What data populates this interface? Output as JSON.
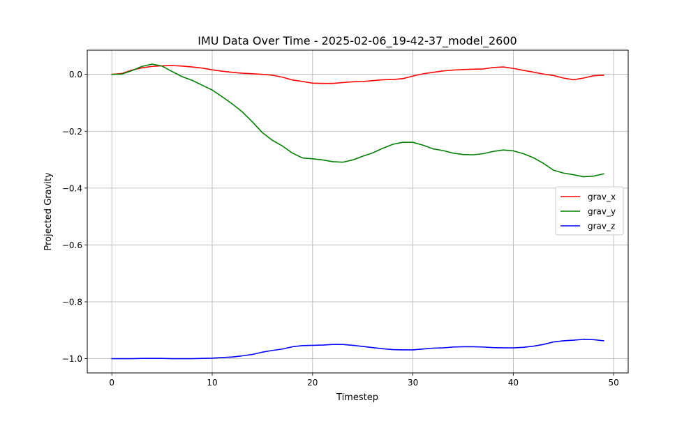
{
  "chart_data": {
    "type": "line",
    "title": "IMU Data Over Time - 2025-02-06_19-42-37_model_2600",
    "xlabel": "Timestep",
    "ylabel": "Projected Gravity",
    "xlim": [
      -2.45,
      51.45
    ],
    "ylim": [
      -1.05,
      0.085
    ],
    "xticks": [
      0,
      10,
      20,
      30,
      40,
      50
    ],
    "xtick_labels": [
      "0",
      "10",
      "20",
      "30",
      "40",
      "50"
    ],
    "yticks": [
      0.0,
      -0.2,
      -0.4,
      -0.6,
      -0.8,
      -1.0
    ],
    "ytick_labels": [
      "0.0",
      "−0.2",
      "−0.4",
      "−0.6",
      "−0.8",
      "−1.0"
    ],
    "grid": true,
    "legend_position": "right",
    "x": [
      0,
      1,
      2,
      3,
      4,
      5,
      6,
      7,
      8,
      9,
      10,
      11,
      12,
      13,
      14,
      15,
      16,
      17,
      18,
      19,
      20,
      21,
      22,
      23,
      24,
      25,
      26,
      27,
      28,
      29,
      30,
      31,
      32,
      33,
      34,
      35,
      36,
      37,
      38,
      39,
      40,
      41,
      42,
      43,
      44,
      45,
      46,
      47,
      48,
      49
    ],
    "series": [
      {
        "name": "grav_x",
        "color": "#ff0000",
        "values": [
          0.0,
          0.003,
          0.015,
          0.023,
          0.028,
          0.03,
          0.031,
          0.029,
          0.026,
          0.022,
          0.016,
          0.011,
          0.007,
          0.004,
          0.002,
          0.0,
          -0.003,
          -0.01,
          -0.02,
          -0.025,
          -0.031,
          -0.032,
          -0.032,
          -0.029,
          -0.026,
          -0.025,
          -0.022,
          -0.019,
          -0.018,
          -0.015,
          -0.006,
          0.002,
          0.007,
          0.012,
          0.015,
          0.017,
          0.018,
          0.019,
          0.024,
          0.026,
          0.021,
          0.014,
          0.008,
          0.001,
          -0.004,
          -0.013,
          -0.019,
          -0.013,
          -0.005,
          -0.003
        ]
      },
      {
        "name": "grav_y",
        "color": "#008000",
        "values": [
          0.0,
          0.001,
          0.013,
          0.028,
          0.036,
          0.029,
          0.01,
          -0.008,
          -0.021,
          -0.038,
          -0.055,
          -0.079,
          -0.104,
          -0.132,
          -0.167,
          -0.205,
          -0.232,
          -0.252,
          -0.277,
          -0.294,
          -0.297,
          -0.301,
          -0.307,
          -0.309,
          -0.301,
          -0.288,
          -0.276,
          -0.26,
          -0.246,
          -0.239,
          -0.239,
          -0.249,
          -0.262,
          -0.268,
          -0.277,
          -0.282,
          -0.283,
          -0.279,
          -0.271,
          -0.266,
          -0.269,
          -0.279,
          -0.293,
          -0.313,
          -0.337,
          -0.347,
          -0.353,
          -0.36,
          -0.358,
          -0.35
        ]
      },
      {
        "name": "grav_z",
        "color": "#0000ff",
        "values": [
          -1.0,
          -1.0,
          -1.0,
          -0.999,
          -0.999,
          -0.999,
          -1.0,
          -1.0,
          -1.0,
          -0.999,
          -0.998,
          -0.996,
          -0.994,
          -0.99,
          -0.985,
          -0.977,
          -0.971,
          -0.966,
          -0.958,
          -0.954,
          -0.953,
          -0.952,
          -0.95,
          -0.95,
          -0.953,
          -0.957,
          -0.961,
          -0.965,
          -0.968,
          -0.969,
          -0.969,
          -0.966,
          -0.963,
          -0.962,
          -0.959,
          -0.958,
          -0.958,
          -0.959,
          -0.961,
          -0.962,
          -0.962,
          -0.96,
          -0.956,
          -0.95,
          -0.941,
          -0.937,
          -0.935,
          -0.932,
          -0.933,
          -0.937
        ]
      }
    ]
  }
}
